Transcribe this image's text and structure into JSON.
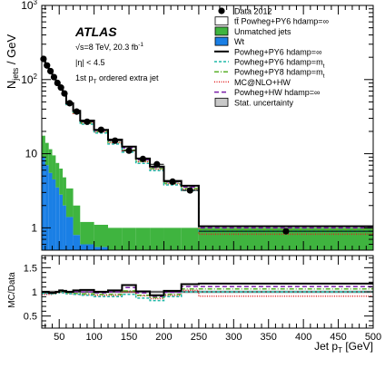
{
  "chart_data": {
    "type": "histogram",
    "x_edges": [
      25,
      30,
      35,
      40,
      45,
      50,
      55,
      60,
      70,
      80,
      100,
      120,
      140,
      160,
      180,
      200,
      225,
      250,
      500
    ],
    "xlim": [
      25,
      500
    ],
    "ylim": [
      0.5,
      1000
    ],
    "yscale": "log",
    "xlabel_main": "Jet p",
    "xlabel_sub": "T",
    "xlabel_unit": " [GeV]",
    "ylabel_main": "N",
    "ylabel_sub": "jets",
    "ylabel_unit": " / GeV",
    "ratio_ylabel": "MC/Data",
    "ratio_ylim": [
      0.25,
      1.75
    ],
    "x_ticks": [
      "50",
      "100",
      "150",
      "200",
      "250",
      "300",
      "350",
      "400",
      "450",
      "500"
    ],
    "x_tick_values": [
      50,
      100,
      150,
      200,
      250,
      300,
      350,
      400,
      450,
      500
    ],
    "y_ticks": [
      {
        "value": 1,
        "label": "1",
        "sup": ""
      },
      {
        "value": 10,
        "label": "10",
        "sup": ""
      },
      {
        "value": 100,
        "label": "10",
        "sup": "2"
      },
      {
        "value": 1000,
        "label": "10",
        "sup": "3"
      }
    ],
    "ratio_ticks": [
      "0.5",
      "1",
      "1.5"
    ],
    "ratio_tick_values": [
      0.5,
      1.0,
      1.5
    ],
    "annotations": {
      "experiment": "ATLAS",
      "energy": "√s=8 TeV, 20.3 fb",
      "energy_sup": "-1",
      "eta": "|η| < 4.5",
      "ordering_pre": "1st p",
      "ordering_sub": "T",
      "ordering_post": " ordered extra jet"
    },
    "legend": [
      {
        "label": "Data 2012",
        "style": "marker"
      },
      {
        "label": "tt̄ Powheg+PY6 hdamp=∞",
        "style": "box",
        "fill": "#ffffff"
      },
      {
        "label": "Unmatched jets",
        "style": "box",
        "fill": "#3fb43f"
      },
      {
        "label": "Wt",
        "style": "box",
        "fill": "#1a7fe5"
      },
      {
        "label": "Powheg+PY6 hdamp=∞",
        "style": "line",
        "color": "#000000",
        "dash": "",
        "width": 2
      },
      {
        "label": "Powheg+PY6 hdamp=m",
        "sub": "t",
        "style": "line",
        "color": "#1fb8a8",
        "dash": "3,2",
        "width": 1.5
      },
      {
        "label": "Powheg+PY8 hdamp=m",
        "sub": "t",
        "style": "line",
        "color": "#5ab02a",
        "dash": "5,2,1,2",
        "width": 1.5
      },
      {
        "label": "MC@NLO+HW",
        "style": "line",
        "color": "#e02020",
        "dash": "1,1.5",
        "width": 1.5
      },
      {
        "label": "Powheg+HW hdamp=∞",
        "style": "line",
        "color": "#7a1fa8",
        "dash": "5,3",
        "width": 1.5
      },
      {
        "label": "Stat. uncertainty",
        "style": "box",
        "fill": "#c8c8c8"
      }
    ],
    "data": {
      "x": [
        27.5,
        32.5,
        37.5,
        42.5,
        47.5,
        52.5,
        57.5,
        65,
        75,
        90,
        110,
        130,
        150,
        170,
        190,
        212.5,
        237.5,
        375
      ],
      "y": [
        190,
        155,
        130,
        108,
        90,
        78,
        65,
        48,
        37,
        27,
        21,
        15,
        11,
        8.5,
        7.2,
        4.2,
        3.2,
        0.9
      ]
    },
    "stack_wt": [
      9.0,
      7.0,
      5.5,
      4.5,
      3.5,
      2.8,
      2.0,
      1.4,
      0.8,
      0.6,
      0.55,
      0.5,
      0.5,
      0.5,
      0.5,
      0.5,
      0.5,
      0.5
    ],
    "stack_unmatched": [
      8.5,
      7.0,
      6.0,
      5.0,
      4.0,
      3.5,
      2.8,
      2.0,
      1.2,
      0.6,
      0.55,
      0.5,
      0.5,
      0.5,
      0.5,
      0.5,
      0.5,
      0.5
    ],
    "series": [
      {
        "name": "Powheg+PY6 hdamp=∞",
        "color": "#000000",
        "dash": "",
        "width": 2,
        "values": [
          190,
          155,
          128,
          106,
          90,
          80,
          66,
          48,
          38,
          28,
          21,
          15.5,
          12.5,
          8.6,
          6.7,
          4.3,
          3.7,
          1.05
        ],
        "ratio": [
          1.0,
          1.0,
          0.98,
          0.98,
          1.0,
          1.03,
          1.02,
          1.0,
          1.03,
          1.04,
          1.0,
          1.03,
          1.14,
          1.01,
          0.93,
          1.02,
          1.16,
          1.17
        ]
      },
      {
        "name": "Powheg+PY6 hdamp=mt",
        "color": "#1fb8a8",
        "dash": "3,2",
        "width": 1.5,
        "values": [
          185,
          150,
          125,
          104,
          88,
          78,
          64,
          46,
          35,
          25,
          19,
          13.5,
          10.5,
          7.4,
          5.9,
          3.8,
          3.2,
          0.9
        ],
        "ratio": [
          0.97,
          0.97,
          0.96,
          0.96,
          0.98,
          1.0,
          0.98,
          0.96,
          0.95,
          0.93,
          0.9,
          0.9,
          0.95,
          0.87,
          0.82,
          0.9,
          1.0,
          1.0
        ]
      },
      {
        "name": "Powheg+PY8 hdamp=mt",
        "color": "#5ab02a",
        "dash": "5,2,1,2",
        "width": 1.5,
        "values": [
          188,
          152,
          127,
          105,
          89,
          79,
          65,
          47,
          36,
          26,
          20,
          14.2,
          11.2,
          7.9,
          6.3,
          4.0,
          3.4,
          0.95
        ],
        "ratio": [
          0.99,
          0.98,
          0.98,
          0.97,
          0.99,
          1.01,
          1.0,
          0.98,
          0.97,
          0.96,
          0.95,
          0.95,
          1.02,
          0.93,
          0.88,
          0.95,
          1.06,
          1.06
        ]
      },
      {
        "name": "MC@NLO+HW",
        "color": "#e02020",
        "dash": "1,1.5",
        "width": 1.5,
        "values": [
          180,
          148,
          124,
          104,
          88,
          78,
          64,
          46,
          35,
          25.5,
          19.5,
          14,
          11,
          7.8,
          6.2,
          3.9,
          3.3,
          0.82
        ],
        "ratio": [
          0.95,
          0.95,
          0.95,
          0.96,
          0.98,
          1.0,
          0.98,
          0.96,
          0.95,
          0.94,
          0.93,
          0.93,
          1.0,
          0.92,
          0.86,
          0.93,
          1.03,
          0.91
        ]
      },
      {
        "name": "Powheg+HW hdamp=∞",
        "color": "#7a1fa8",
        "dash": "5,3",
        "width": 1.5,
        "values": [
          184,
          150,
          126,
          106,
          90,
          80,
          66,
          47.5,
          37,
          27,
          20.5,
          15,
          12,
          8.3,
          6.5,
          4.15,
          3.55,
          1.0
        ],
        "ratio": [
          0.97,
          0.97,
          0.97,
          0.98,
          1.0,
          1.02,
          1.02,
          0.99,
          1.0,
          1.0,
          0.98,
          1.0,
          1.09,
          0.98,
          0.9,
          0.99,
          1.11,
          1.11
        ]
      }
    ],
    "stat_unc_ratio": 0.03
  }
}
